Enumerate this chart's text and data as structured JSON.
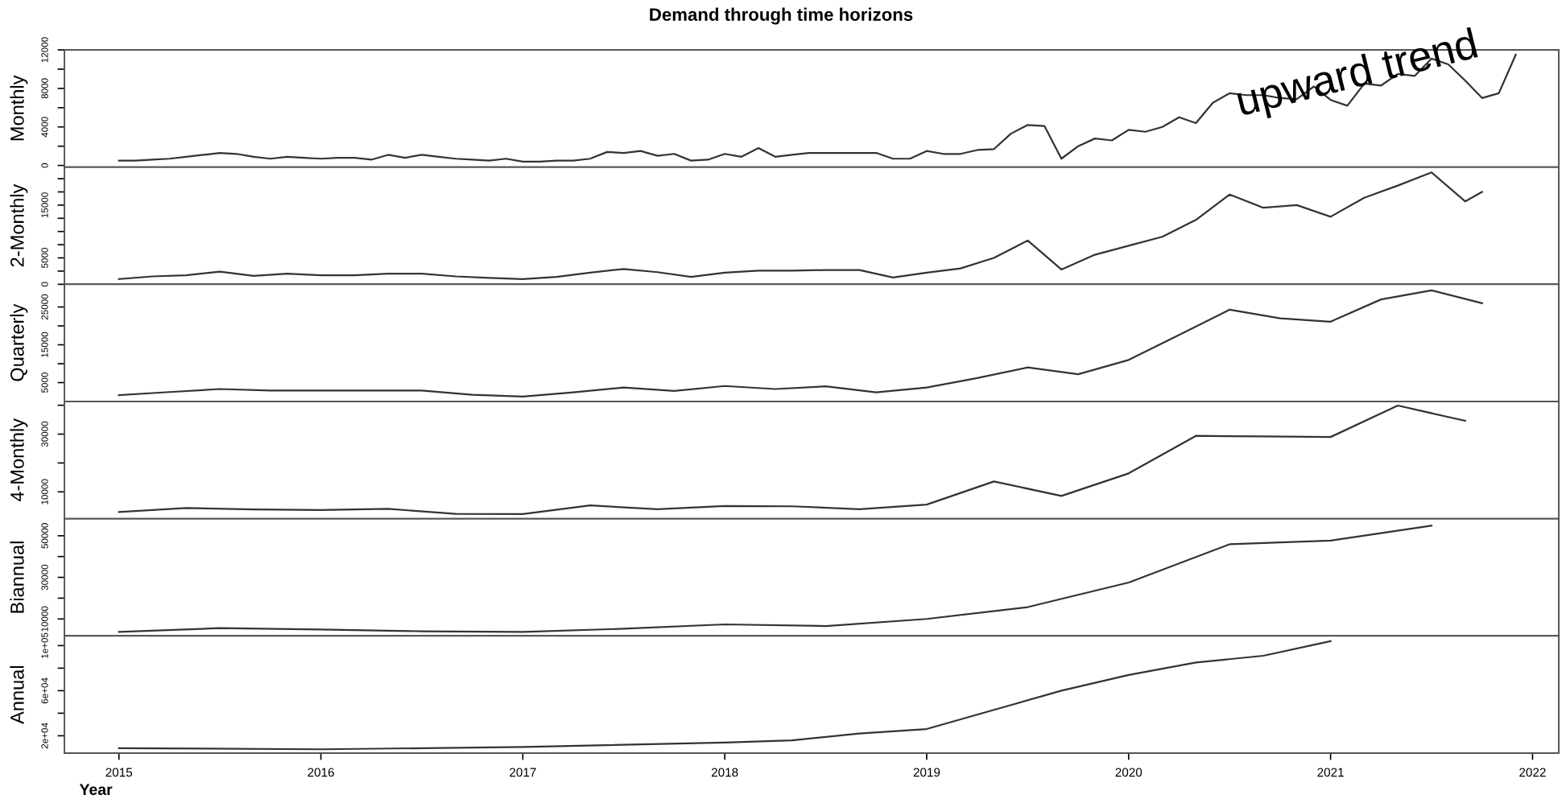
{
  "chart_data": [
    {
      "type": "line",
      "title": "Demand through time horizons",
      "ylabel": "Monthly",
      "annotations": [
        "upward trend"
      ],
      "series": [
        {
          "color": "#333333",
          "x": [
            2015,
            2015.083,
            2015.167,
            2015.25,
            2015.333,
            2015.417,
            2015.5,
            2015.583,
            2015.667,
            2015.75,
            2015.833,
            2015.917,
            2016,
            2016.083,
            2016.167,
            2016.25,
            2016.333,
            2016.417,
            2016.5,
            2016.583,
            2016.667,
            2016.75,
            2016.833,
            2016.917,
            2017,
            2017.083,
            2017.167,
            2017.25,
            2017.333,
            2017.417,
            2017.5,
            2017.583,
            2017.667,
            2017.75,
            2017.833,
            2017.917,
            2018,
            2018.083,
            2018.167,
            2018.25,
            2018.333,
            2018.417,
            2018.5,
            2018.583,
            2018.667,
            2018.75,
            2018.833,
            2018.917,
            2019,
            2019.083,
            2019.167,
            2019.25,
            2019.333,
            2019.417,
            2019.5,
            2019.583,
            2019.667,
            2019.75,
            2019.833,
            2019.917,
            2020,
            2020.083,
            2020.167,
            2020.25,
            2020.333,
            2020.417,
            2020.5,
            2020.583,
            2020.667,
            2020.75,
            2020.833,
            2020.917,
            2021,
            2021.083,
            2021.167,
            2021.25,
            2021.333,
            2021.417,
            2021.5,
            2021.583,
            2021.667,
            2021.75,
            2021.833,
            2021.917
          ],
          "values": [
            500,
            500,
            600,
            700,
            900,
            1100,
            1300,
            1200,
            900,
            700,
            900,
            800,
            700,
            800,
            800,
            600,
            1100,
            800,
            1100,
            900,
            700,
            600,
            500,
            700,
            400,
            400,
            500,
            500,
            700,
            1400,
            1300,
            1500,
            1000,
            1200,
            500,
            600,
            1200,
            900,
            1800,
            900,
            1100,
            1300,
            1300,
            1300,
            1300,
            1300,
            700,
            700,
            1500,
            1200,
            1200,
            1600,
            1700,
            3300,
            4200,
            4100,
            700,
            2000,
            2800,
            2600,
            3700,
            3500,
            4000,
            5000,
            4400,
            6500,
            7500,
            7300,
            7300,
            7000,
            6900,
            8200,
            6800,
            6200,
            8500,
            8300,
            9500,
            9300,
            11100,
            10500,
            8800,
            7000,
            7500,
            11500
          ]
        }
      ],
      "xlim": [
        2014.73,
        2022.13
      ],
      "ylim": [
        -170,
        12000
      ],
      "tick_labels": "y",
      "yticks": [
        0,
        {
          "value": 2000,
          "label": null
        },
        4000,
        {
          "value": 6000,
          "label": null
        },
        8000,
        {
          "value": 10000,
          "label": null
        },
        12000
      ]
    },
    {
      "type": "line",
      "ylabel": "2-Monthly",
      "series": [
        {
          "color": "#333333",
          "x": [
            2015,
            2015.167,
            2015.333,
            2015.5,
            2015.667,
            2015.833,
            2016,
            2016.167,
            2016.333,
            2016.5,
            2016.667,
            2016.833,
            2017,
            2017.167,
            2017.333,
            2017.5,
            2017.667,
            2017.833,
            2018,
            2018.167,
            2018.333,
            2018.5,
            2018.667,
            2018.833,
            2019,
            2019.167,
            2019.333,
            2019.5,
            2019.667,
            2019.833,
            2020,
            2020.167,
            2020.333,
            2020.5,
            2020.667,
            2020.833,
            2021,
            2021.167,
            2021.333,
            2021.5,
            2021.667,
            2021.75
          ],
          "values": [
            1000,
            1500,
            1700,
            2400,
            1600,
            2000,
            1700,
            1700,
            2000,
            2000,
            1500,
            1200,
            1000,
            1400,
            2200,
            2900,
            2300,
            1400,
            2200,
            2600,
            2600,
            2700,
            2700,
            1300,
            2200,
            3000,
            5000,
            8300,
            2800,
            5600,
            7300,
            9000,
            12200,
            17000,
            14500,
            15000,
            12800,
            16400,
            18700,
            21200,
            15700,
            17500
          ]
        }
      ],
      "xlim": [
        2014.73,
        2022.13
      ],
      "ylim": [
        0,
        22200
      ],
      "tick_labels": "y",
      "yticks": [
        0,
        {
          "value": 2500,
          "label": null
        },
        5000,
        {
          "value": 7500,
          "label": null
        },
        {
          "value": 10000,
          "label": null
        },
        {
          "value": 12500,
          "label": null
        },
        15000,
        {
          "value": 17500,
          "label": null
        },
        {
          "value": 20000,
          "label": null
        }
      ]
    },
    {
      "type": "line",
      "ylabel": "Quarterly",
      "series": [
        {
          "color": "#333333",
          "x": [
            2015,
            2015.25,
            2015.5,
            2015.75,
            2016,
            2016.25,
            2016.5,
            2016.75,
            2017,
            2017.25,
            2017.5,
            2017.75,
            2018,
            2018.25,
            2018.5,
            2018.75,
            2019,
            2019.25,
            2019.5,
            2019.75,
            2020,
            2020.25,
            2020.5,
            2020.75,
            2021,
            2021.25,
            2021.5,
            2021.75
          ],
          "values": [
            1700,
            2500,
            3300,
            2900,
            2900,
            2900,
            2900,
            1800,
            1300,
            2400,
            3700,
            2800,
            4100,
            3300,
            4000,
            2400,
            3700,
            6200,
            9000,
            7200,
            11000,
            17600,
            24300,
            22000,
            21100,
            27000,
            29400,
            26000
          ]
        }
      ],
      "xlim": [
        2014.73,
        2022.13
      ],
      "ylim": [
        0,
        31000
      ],
      "tick_labels": "y",
      "yticks": [
        5000,
        {
          "value": 10000,
          "label": null
        },
        15000,
        {
          "value": 20000,
          "label": null
        },
        25000
      ]
    },
    {
      "type": "line",
      "ylabel": "4-Monthly",
      "series": [
        {
          "color": "#333333",
          "x": [
            2015,
            2015.333,
            2015.667,
            2016,
            2016.333,
            2016.667,
            2017,
            2017.333,
            2017.667,
            2018,
            2018.333,
            2018.667,
            2019,
            2019.333,
            2019.667,
            2020,
            2020.333,
            2020.667,
            2021,
            2021.333,
            2021.667
          ],
          "values": [
            3000,
            4400,
            3900,
            3700,
            4100,
            2400,
            2300,
            5300,
            4000,
            5100,
            5000,
            4000,
            5600,
            13600,
            8600,
            16400,
            29400,
            29200,
            29000,
            39900,
            34600
          ]
        }
      ],
      "xlim": [
        2014.73,
        2022.13
      ],
      "ylim": [
        700,
        41300
      ],
      "tick_labels": "y",
      "yticks": [
        10000,
        {
          "value": 20000,
          "label": null
        },
        30000,
        {
          "value": 40000,
          "label": null
        }
      ]
    },
    {
      "type": "line",
      "ylabel": "Biannual",
      "series": [
        {
          "color": "#333333",
          "x": [
            2015,
            2015.5,
            2016,
            2016.5,
            2017,
            2017.5,
            2018,
            2018.5,
            2019,
            2019.5,
            2020,
            2020.5,
            2021,
            2021.5
          ],
          "values": [
            3800,
            5600,
            4900,
            4100,
            3800,
            5300,
            7400,
            6600,
            10000,
            15700,
            27500,
            45900,
            47700,
            54900
          ]
        }
      ],
      "xlim": [
        2014.73,
        2022.13
      ],
      "ylim": [
        1850,
        58200
      ],
      "tick_labels": "y",
      "yticks": [
        10000,
        {
          "value": 20000,
          "label": null
        },
        30000,
        {
          "value": 40000,
          "label": null
        },
        50000
      ]
    },
    {
      "type": "line",
      "ylabel": "Annual",
      "xlabel": "Year",
      "series": [
        {
          "color": "#333333",
          "x": [
            2015,
            2016,
            2017,
            2018,
            2018.333,
            2018.667,
            2019,
            2019.333,
            2019.667,
            2020,
            2020.333,
            2020.667,
            2021
          ],
          "values": [
            9000,
            8000,
            10000,
            14000,
            16000,
            22000,
            26000,
            43000,
            60000,
            74000,
            85000,
            91000,
            104000
          ]
        }
      ],
      "xlim": [
        2014.73,
        2022.13
      ],
      "ylim": [
        4600,
        108600
      ],
      "xticks": [
        2015,
        2016,
        2017,
        2018,
        2019,
        2020,
        2021,
        2022
      ],
      "yticks": [
        {
          "value": 20000,
          "label": "2e+04"
        },
        {
          "value": 40000,
          "label": null
        },
        {
          "value": 60000,
          "label": "6e+04"
        },
        {
          "value": 80000,
          "label": null
        },
        {
          "value": 100000,
          "label": "1e+05"
        }
      ]
    }
  ]
}
